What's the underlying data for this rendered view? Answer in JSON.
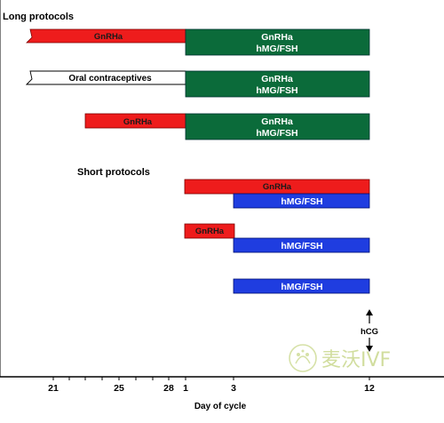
{
  "sections": {
    "long": "Long protocols",
    "short": "Short protocols"
  },
  "rows": {
    "long1": {
      "gnrha": "GnRHa",
      "green_line1": "GnRHa",
      "green_line2": "hMG/FSH"
    },
    "long2": {
      "oc": "Oral contraceptives",
      "green_line1": "GnRHa",
      "green_line2": "hMG/FSH"
    },
    "long3": {
      "gnrha": "GnRHa",
      "green_line1": "GnRHa",
      "green_line2": "hMG/FSH"
    },
    "short1": {
      "gnrha": "GnRHa",
      "stim": "hMG/FSH"
    },
    "short2": {
      "gnrha": "GnRHa",
      "stim": "hMG/FSH"
    },
    "short3": {
      "stim": "hMG/FSH"
    }
  },
  "axis": {
    "title": "Day of cycle",
    "ticks": [
      "21",
      "25",
      "28",
      "1",
      "3",
      "12"
    ]
  },
  "trigger": {
    "label": "hCG"
  },
  "watermark": {
    "text": "麦沃IVF"
  },
  "colors": {
    "gnrha_red": "#ee1c1c",
    "stim_green": "#0b6b3a",
    "stim_blue": "#1f3de0",
    "oc_white": "#ffffff"
  }
}
